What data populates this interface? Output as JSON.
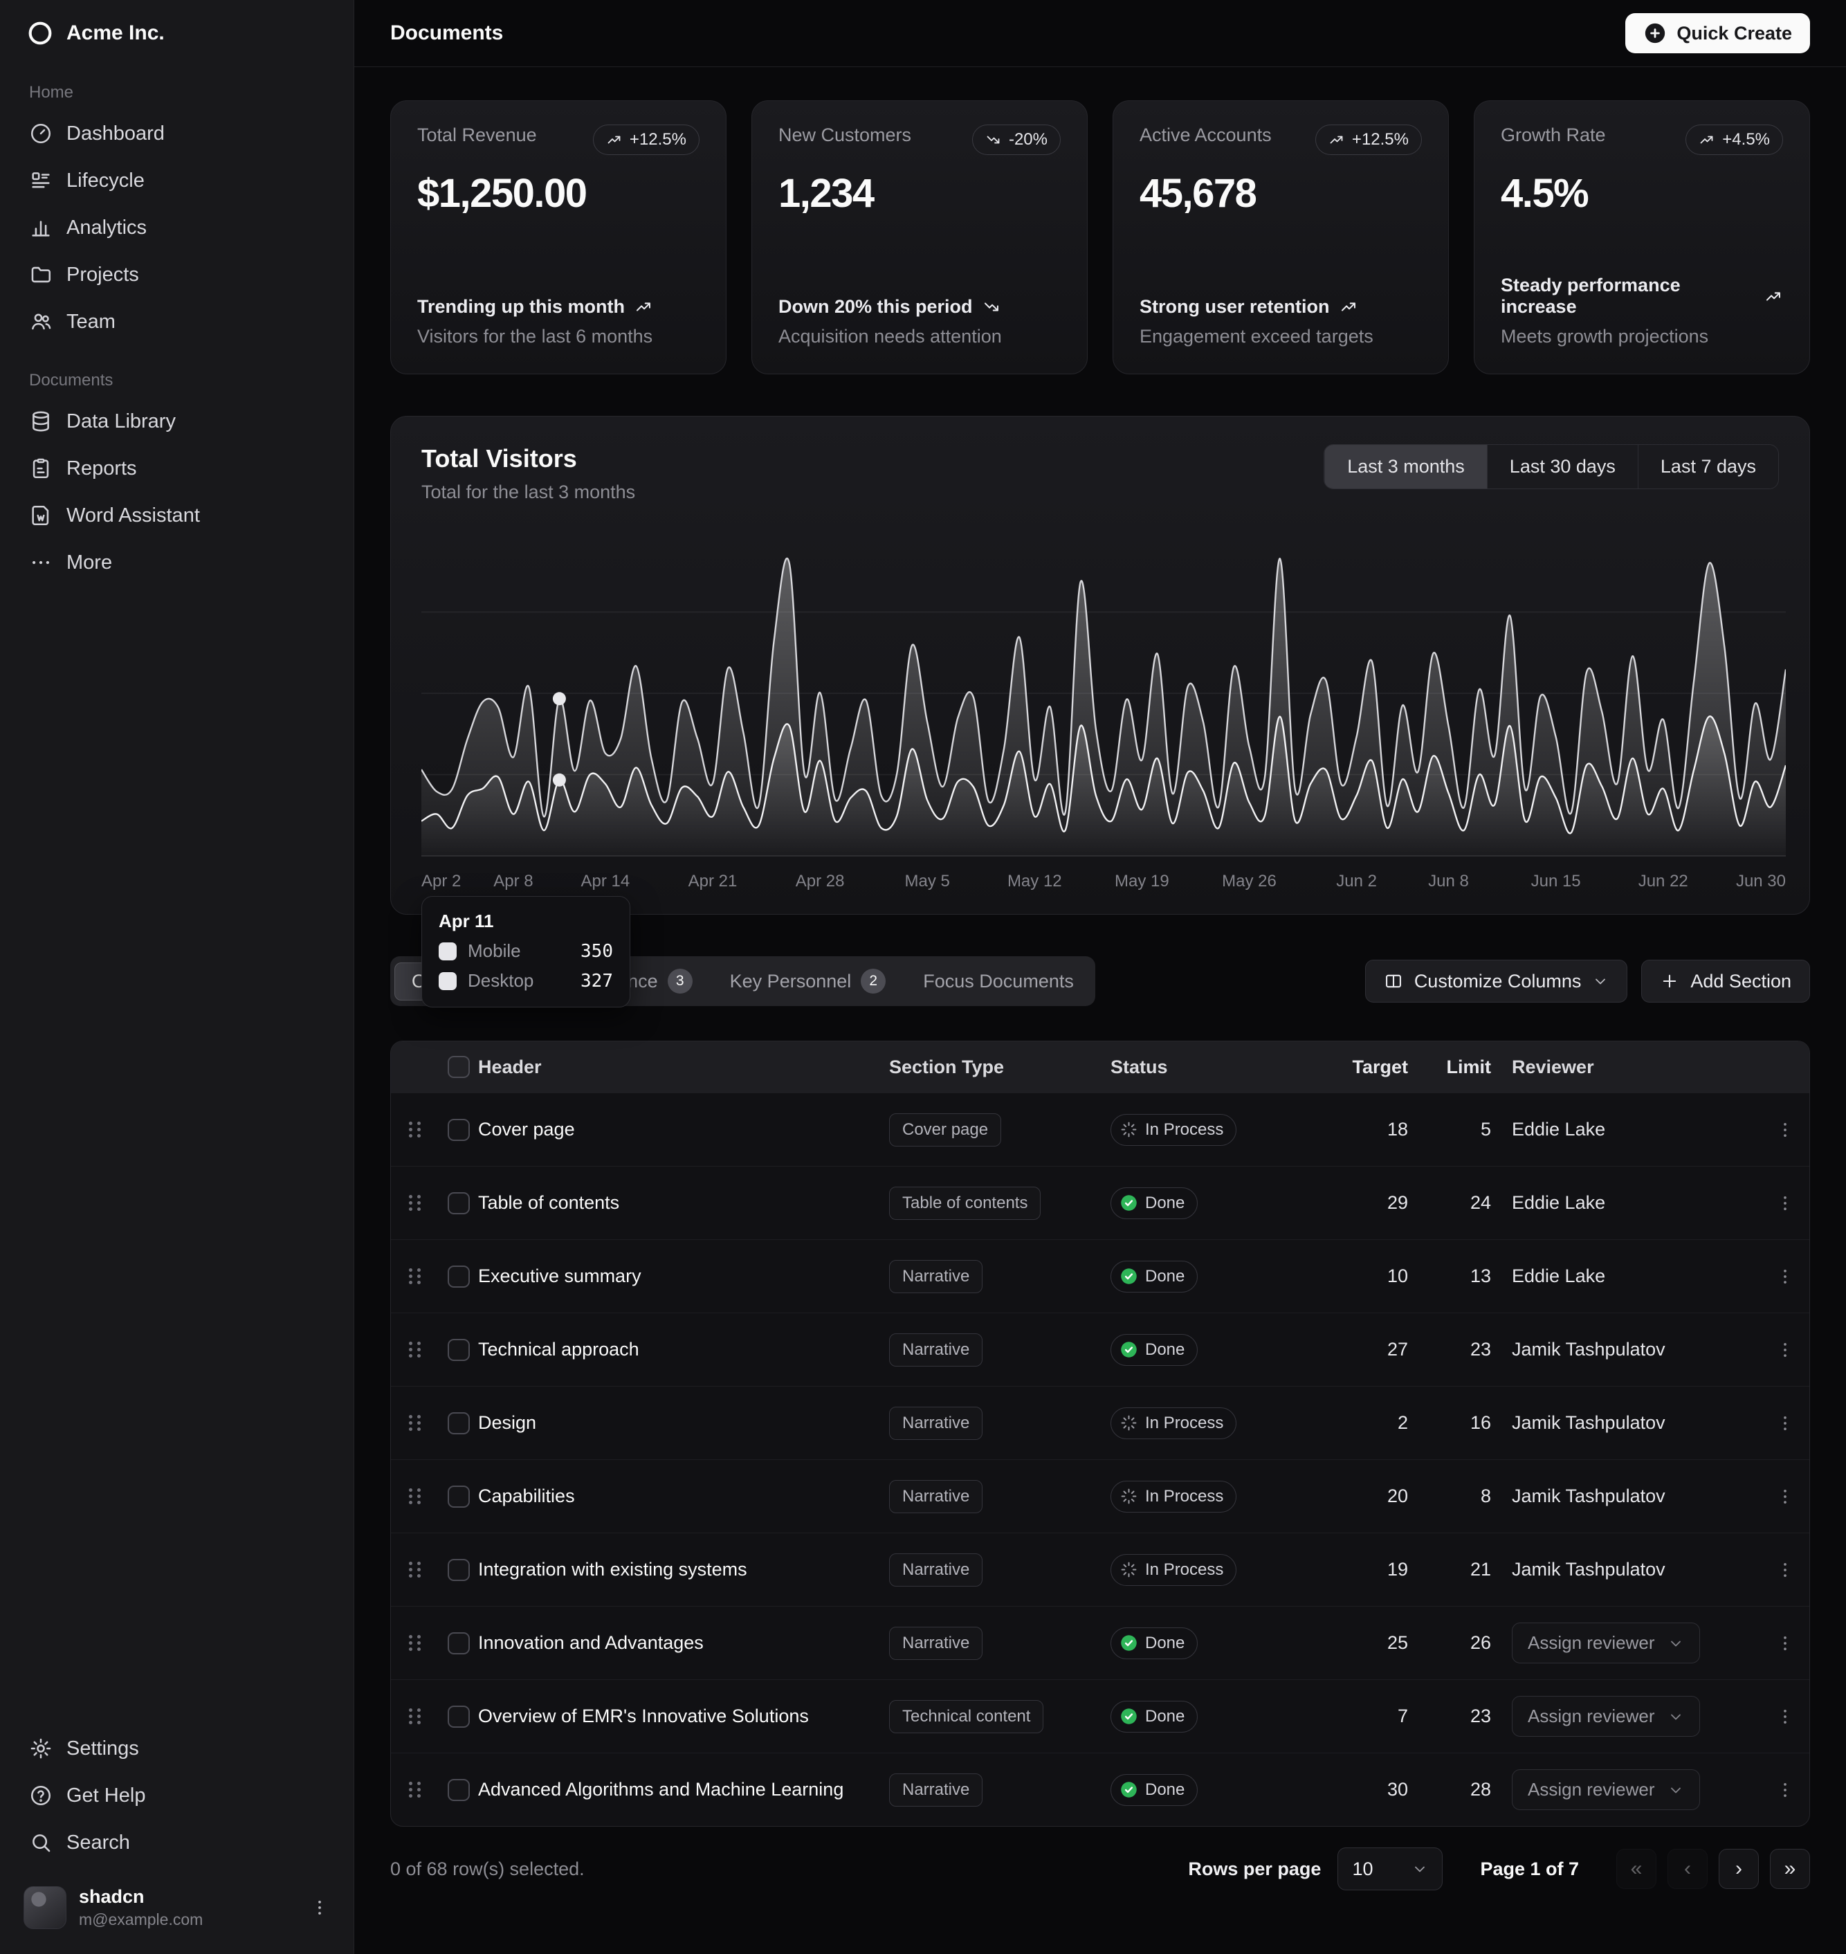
{
  "brand": {
    "name": "Acme Inc."
  },
  "topbar": {
    "title": "Documents",
    "quick_create_label": "Quick Create"
  },
  "sidebar": {
    "sections": [
      {
        "label": "Home",
        "items": [
          {
            "label": "Dashboard",
            "icon": "dashboard"
          },
          {
            "label": "Lifecycle",
            "icon": "lifecycle"
          },
          {
            "label": "Analytics",
            "icon": "analytics"
          },
          {
            "label": "Projects",
            "icon": "folder"
          },
          {
            "label": "Team",
            "icon": "team"
          }
        ]
      },
      {
        "label": "Documents",
        "items": [
          {
            "label": "Data Library",
            "icon": "database"
          },
          {
            "label": "Reports",
            "icon": "report"
          },
          {
            "label": "Word Assistant",
            "icon": "word"
          },
          {
            "label": "More",
            "icon": "more"
          }
        ]
      }
    ],
    "footer_items": [
      {
        "label": "Settings",
        "icon": "settings"
      },
      {
        "label": "Get Help",
        "icon": "help"
      },
      {
        "label": "Search",
        "icon": "search"
      }
    ],
    "user": {
      "name": "shadcn",
      "email": "m@example.com"
    }
  },
  "stats": [
    {
      "title": "Total Revenue",
      "value": "$1,250.00",
      "badge": "+12.5%",
      "trend": "up",
      "line1": "Trending up this month",
      "line2": "Visitors for the last 6 months"
    },
    {
      "title": "New Customers",
      "value": "1,234",
      "badge": "-20%",
      "trend": "down",
      "line1": "Down 20% this period",
      "line2": "Acquisition needs attention"
    },
    {
      "title": "Active Accounts",
      "value": "45,678",
      "badge": "+12.5%",
      "trend": "up",
      "line1": "Strong user retention",
      "line2": "Engagement exceed targets"
    },
    {
      "title": "Growth Rate",
      "value": "4.5%",
      "badge": "+4.5%",
      "trend": "up",
      "line1": "Steady performance increase",
      "line2": "Meets growth projections"
    }
  ],
  "chart": {
    "title": "Total Visitors",
    "subtitle": "Total for the last 3 months",
    "ranges": [
      {
        "label": "Last 3 months",
        "active": true
      },
      {
        "label": "Last 30 days",
        "active": false
      },
      {
        "label": "Last 7 days",
        "active": false
      }
    ],
    "tooltip": {
      "date": "Apr 11",
      "rows": [
        {
          "label": "Mobile",
          "value": "350"
        },
        {
          "label": "Desktop",
          "value": "327"
        }
      ]
    }
  },
  "chart_data": {
    "type": "area",
    "stacked": true,
    "title": "Total Visitors",
    "subtitle": "Total for the last 3 months",
    "x_tick_indices": [
      0,
      6,
      12,
      19,
      26,
      33,
      40,
      47,
      54,
      61,
      67,
      74,
      81,
      89
    ],
    "x_tick_labels": [
      "Apr 2",
      "Apr 8",
      "Apr 14",
      "Apr 21",
      "Apr 28",
      "May 5",
      "May 12",
      "May 19",
      "May 26",
      "Jun 2",
      "Jun 8",
      "Jun 15",
      "Jun 22",
      "Jun 30"
    ],
    "y_max": 1400,
    "gridline_values": [
      350,
      700,
      1050
    ],
    "grid": "horizontal",
    "legend_position": "tooltip-only",
    "highlight_index": 9,
    "series": [
      {
        "name": "Desktop",
        "values": [
          150,
          180,
          120,
          260,
          290,
          340,
          180,
          320,
          110,
          327,
          190,
          350,
          310,
          210,
          380,
          220,
          140,
          294,
          256,
          170,
          362,
          210,
          130,
          420,
          560,
          190,
          410,
          150,
          250,
          280,
          120,
          170,
          460,
          240,
          160,
          320,
          298,
          130,
          220,
          450,
          170,
          310,
          110,
          560,
          260,
          150,
          330,
          200,
          420,
          140,
          360,
          280,
          120,
          400,
          230,
          170,
          600,
          150,
          310,
          370,
          160,
          260,
          410,
          120,
          330,
          190,
          430,
          270,
          110,
          350,
          220,
          560,
          150,
          340,
          250,
          100,
          390,
          300,
          160,
          420,
          180,
          290,
          110,
          370,
          600,
          440,
          130,
          320,
          210,
          390
        ]
      },
      {
        "name": "Mobile",
        "values": [
          222,
          97,
          167,
          242,
          373,
          301,
          245,
          409,
          59,
          350,
          176,
          319,
          132,
          294,
          438,
          201,
          98,
          368,
          251,
          142,
          446,
          322,
          85,
          506,
          700,
          160,
          293,
          92,
          213,
          390,
          139,
          178,
          446,
          336,
          138,
          276,
          387,
          105,
          241,
          492,
          159,
          333,
          77,
          620,
          285,
          130,
          344,
          213,
          451,
          128,
          370,
          296,
          91,
          414,
          240,
          162,
          680,
          135,
          298,
          386,
          149,
          253,
          428,
          95,
          318,
          171,
          442,
          288,
          98,
          366,
          211,
          475,
          137,
          348,
          262,
          86,
          400,
          322,
          152,
          440,
          190,
          297,
          96,
          381,
          660,
          459,
          118,
          336,
          205,
          413
        ]
      }
    ]
  },
  "table": {
    "tabs": [
      {
        "label": "Outline",
        "active": true
      },
      {
        "label": "Past Performance",
        "count": "3"
      },
      {
        "label": "Key Personnel",
        "count": "2"
      },
      {
        "label": "Focus Documents"
      }
    ],
    "customize_label": "Customize Columns",
    "add_section_label": "Add Section",
    "assign_reviewer_label": "Assign reviewer",
    "columns": [
      "Header",
      "Section Type",
      "Status",
      "Target",
      "Limit",
      "Reviewer"
    ],
    "rows": [
      {
        "header": "Cover page",
        "type": "Cover page",
        "status": "In Process",
        "target": "18",
        "limit": "5",
        "reviewer": "Eddie Lake"
      },
      {
        "header": "Table of contents",
        "type": "Table of contents",
        "status": "Done",
        "target": "29",
        "limit": "24",
        "reviewer": "Eddie Lake"
      },
      {
        "header": "Executive summary",
        "type": "Narrative",
        "status": "Done",
        "target": "10",
        "limit": "13",
        "reviewer": "Eddie Lake"
      },
      {
        "header": "Technical approach",
        "type": "Narrative",
        "status": "Done",
        "target": "27",
        "limit": "23",
        "reviewer": "Jamik Tashpulatov"
      },
      {
        "header": "Design",
        "type": "Narrative",
        "status": "In Process",
        "target": "2",
        "limit": "16",
        "reviewer": "Jamik Tashpulatov"
      },
      {
        "header": "Capabilities",
        "type": "Narrative",
        "status": "In Process",
        "target": "20",
        "limit": "8",
        "reviewer": "Jamik Tashpulatov"
      },
      {
        "header": "Integration with existing systems",
        "type": "Narrative",
        "status": "In Process",
        "target": "19",
        "limit": "21",
        "reviewer": "Jamik Tashpulatov"
      },
      {
        "header": "Innovation and Advantages",
        "type": "Narrative",
        "status": "Done",
        "target": "25",
        "limit": "26",
        "reviewer": ""
      },
      {
        "header": "Overview of EMR's Innovative Solutions",
        "type": "Technical content",
        "status": "Done",
        "target": "7",
        "limit": "23",
        "reviewer": ""
      },
      {
        "header": "Advanced Algorithms and Machine Learning",
        "type": "Narrative",
        "status": "Done",
        "target": "30",
        "limit": "28",
        "reviewer": ""
      }
    ]
  },
  "footer": {
    "selected_text": "0 of 68 row(s) selected.",
    "rows_per_page_label": "Rows per page",
    "rows_per_page_value": "10",
    "page_text": "Page 1 of 7",
    "pagination": [
      {
        "glyph": "«",
        "disabled": true
      },
      {
        "glyph": "‹",
        "disabled": true
      },
      {
        "glyph": "›",
        "disabled": false
      },
      {
        "glyph": "»",
        "disabled": false
      }
    ]
  }
}
